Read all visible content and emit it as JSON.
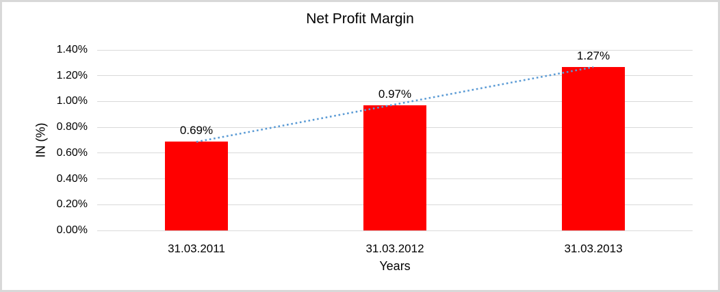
{
  "chart_data": {
    "type": "bar",
    "title": "Net Profit Margin",
    "xlabel": "Years",
    "ylabel": "IN (%)",
    "categories": [
      "31.03.2011",
      "31.03.2012",
      "31.03.2013"
    ],
    "values": [
      0.69,
      0.97,
      1.27
    ],
    "data_labels": [
      "0.69%",
      "0.97%",
      "1.27%"
    ],
    "ylim": [
      0,
      1.4
    ],
    "ytick_step": 0.2,
    "ytick_labels": [
      "0.00%",
      "0.20%",
      "0.40%",
      "0.60%",
      "0.80%",
      "1.00%",
      "1.20%",
      "1.40%"
    ],
    "grid": true,
    "legend": "none",
    "bar_color": "#FF0000",
    "gridline_color": "#D9D9D9",
    "text_color": "#000000",
    "trendline": {
      "type": "linear",
      "style": "dotted",
      "color": "#5B9BD5",
      "fit_values": [
        0.687,
        0.977,
        1.267
      ]
    }
  }
}
